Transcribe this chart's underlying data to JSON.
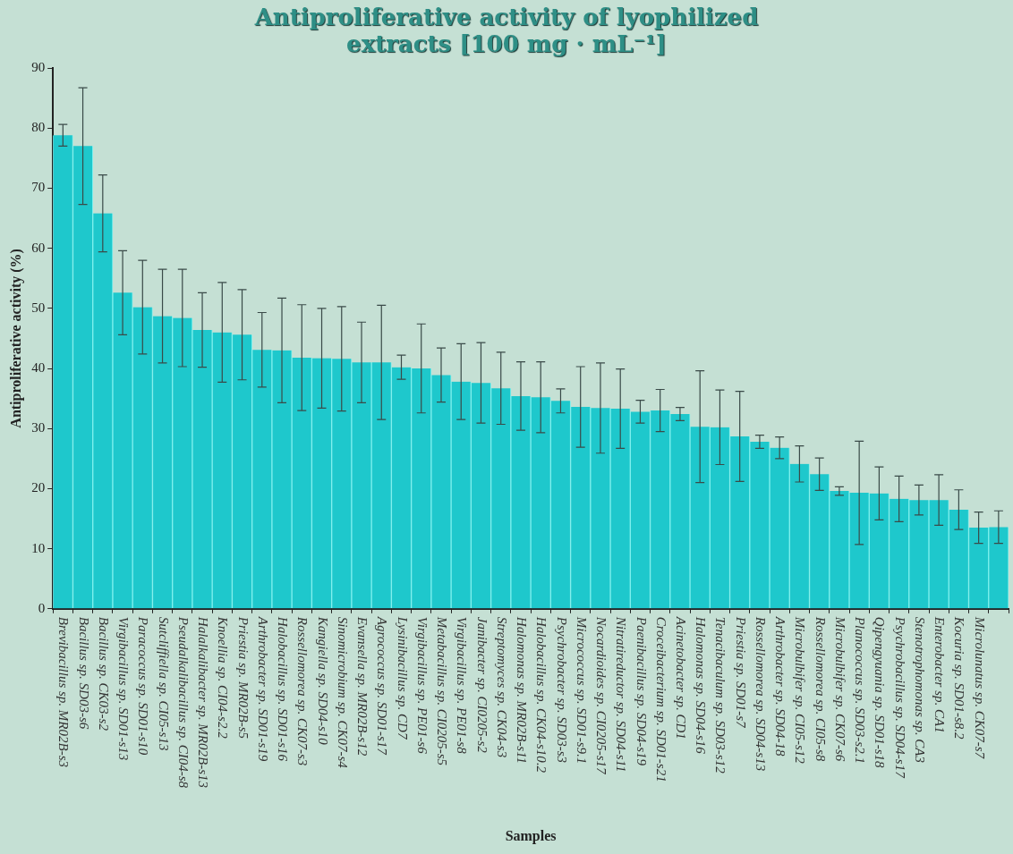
{
  "chart_data": {
    "type": "bar",
    "title": "Antiproliferative activity of lyophilized extracts [100 mg · mL⁻¹]",
    "xlabel": "Samples",
    "ylabel": "Antiproliferative activity (%)",
    "categories": [
      "Brevibacillus sp. MR02B-s3",
      "Bacillus sp. SD03-s6",
      "Bacillus sp. CK03-s2",
      "Virgibacillus sp. SD01-s13",
      "Paracoccus sp. SD01-s10",
      "Sutcliffiella sp. CI05-s13",
      "Pseudalkalibacillus sp. CI04-s8",
      "Halalkalibacter sp. MR02B-s13",
      "Knoellia sp. CI04-s2.2",
      "Priestia sp. MR02B-s5",
      "Arthrobacter sp. SD01-s19",
      "Halobacillus sp. SD01-s16",
      "Rossellomorea sp. CK07-s3",
      "Kangiella sp. SD04-s10",
      "Sinomicrobium sp. CK07-s4",
      "Evansella sp. MR02B-s12",
      "Agrococcus sp. SD01-s17",
      "Lysinibacillus sp. CD7",
      "Virgibacillus sp. PE01-s6",
      "Metabacillus sp. CI0205-s5",
      "Virgibacillus sp. PE01-s8",
      "Janibacter sp. CI0205-s2",
      "Streptomyces sp. CK04-s3",
      "Halomonas sp. MR02B-s11",
      "Halobacillus sp. CK04-s10.2",
      "Psychrobacter sp. SD03-s3",
      "Micrococcus sp. SD01-s9.1",
      "Nocardioides sp. CI0205-s17",
      "Nitratireductor sp. SD04-s11",
      "Paenibacillus sp. SD04-s19",
      "Croceibacterium sp. SD01-s21",
      "Acinetobacter sp. CD1",
      "Halomonas sp. SD04-s16",
      "Tenacibaculum sp. SD03-s12",
      "Priestia sp. SD01-s7",
      "Rossellomorea sp. SD04-s13",
      "Arthrobacter sp. SD04-18",
      "Microbulbifer sp. CI05-s12",
      "Rossellomorea sp. CI05-s8",
      "Microbulbifer sp. CK07-s6",
      "Planococcus sp. SD03-s2.1",
      "Qipengyuania sp. SD01-s18",
      "Psychrobacillus sp. SD04-s17",
      "Stenotrophomonas sp. CA3",
      "Enterobacter sp. CA1",
      "Kocuria sp. SD01-s8.2",
      "Microlunatus sp. CK07-s7",
      null
    ],
    "values": [
      78.8,
      77,
      65.8,
      52.6,
      50.2,
      48.7,
      48.4,
      46.4,
      46,
      45.6,
      43.1,
      43,
      41.8,
      41.7,
      41.6,
      41,
      41,
      40.2,
      40,
      38.9,
      37.8,
      37.6,
      36.7,
      35.4,
      35.2,
      34.6,
      33.6,
      33.4,
      33.3,
      32.8,
      33,
      32.4,
      30.3,
      30.2,
      28.7,
      27.8,
      26.8,
      24.1,
      22.4,
      19.6,
      19.3,
      19.2,
      18.3,
      18.1,
      18.1,
      16.5,
      13.5,
      13.6
    ],
    "errors": [
      1.8,
      9.7,
      6.4,
      7,
      7.8,
      7.8,
      8.1,
      6.2,
      8.3,
      7.5,
      6.2,
      8.7,
      8.8,
      8.3,
      8.7,
      6.7,
      9.5,
      2,
      7.4,
      4.5,
      6.3,
      6.7,
      6,
      5.7,
      5.9,
      2,
      6.7,
      7.5,
      6.6,
      1.9,
      3.5,
      1.1,
      9.3,
      6.2,
      7.5,
      1.1,
      1.8,
      3,
      2.7,
      0.7,
      8.6,
      4.4,
      3.8,
      2.5,
      4.2,
      3.3,
      2.6,
      2.7
    ],
    "color": "#1ec8cc",
    "ylim": [
      0,
      90
    ],
    "yticks": [
      0,
      10,
      20,
      30,
      40,
      50,
      60,
      70,
      80,
      90
    ],
    "grid": false,
    "legend": false
  }
}
